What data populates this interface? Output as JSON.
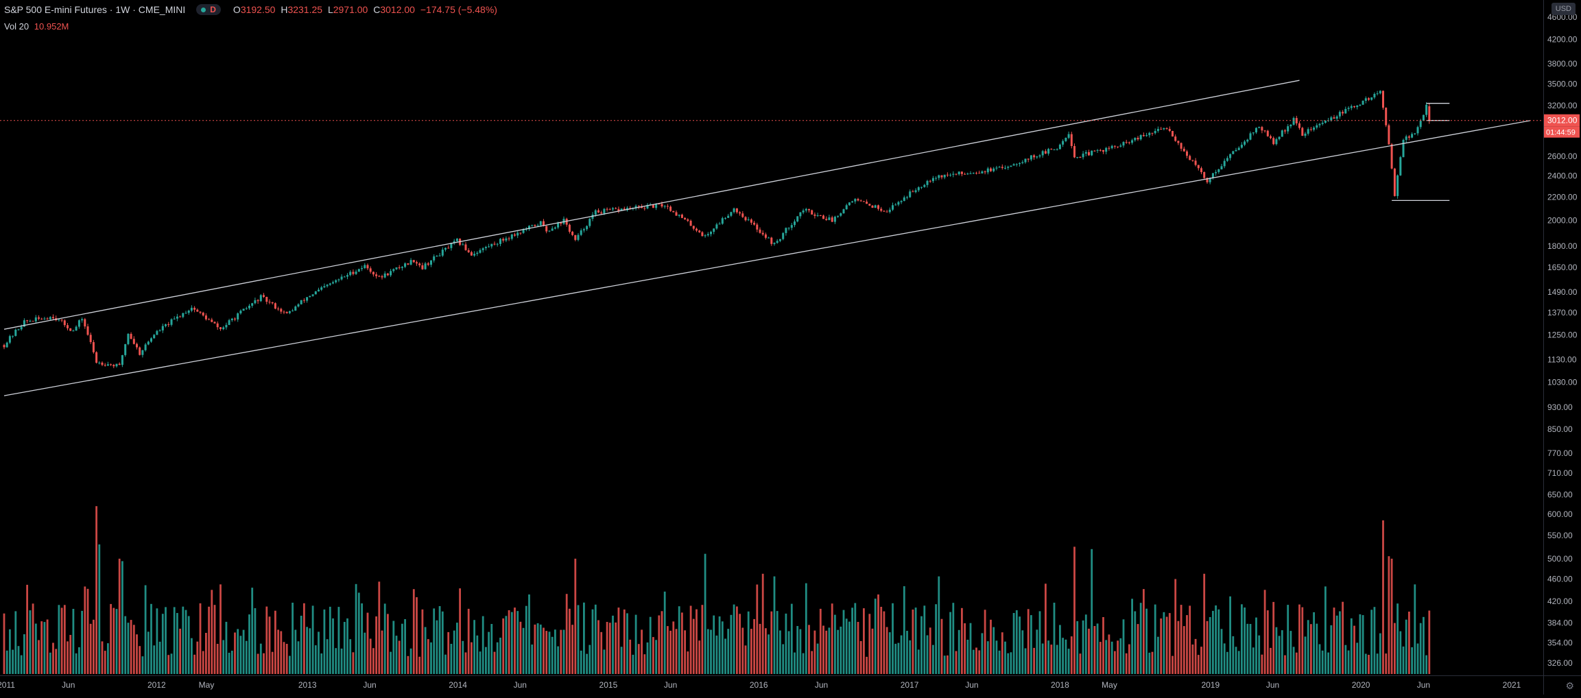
{
  "header": {
    "title": "S&P 500 E-mini Futures · 1W · CME_MINI",
    "interval_badge": "D",
    "ohlc": [
      {
        "key": "O",
        "value": "3192.50"
      },
      {
        "key": "H",
        "value": "3231.25"
      },
      {
        "key": "L",
        "value": "2971.00"
      },
      {
        "key": "C",
        "value": "3012.00"
      }
    ],
    "change": "−174.75 (−5.48%)"
  },
  "volume_legend": {
    "label": "Vol 20",
    "value": "10.952M"
  },
  "currency": "USD",
  "price_tag": {
    "price": "3012.00",
    "countdown": "01:44:59"
  },
  "colors": {
    "background": "#000000",
    "up": "#26a69a",
    "down": "#ef5350",
    "text": "#d1d4dc",
    "axis_text": "#b2b5be",
    "trendline": "#d1d4dc",
    "price_line": "#ef5350"
  },
  "chart_data": {
    "type": "candlestick",
    "title": "S&P 500 E-mini Futures",
    "interval": "1W",
    "y_scale": "log",
    "price_ticks": [
      326,
      354,
      384,
      420,
      460,
      500,
      550,
      600,
      650,
      710,
      770,
      850,
      930,
      1030,
      1130,
      1250,
      1370,
      1490,
      1650,
      1800,
      2000,
      2200,
      2400,
      2600,
      3012,
      3200,
      3500,
      3800,
      4200,
      4600
    ],
    "price_tick_labels": [
      "326.00",
      "354.00",
      "384.00",
      "420.00",
      "460.00",
      "500.00",
      "550.00",
      "600.00",
      "650.00",
      "710.00",
      "770.00",
      "850.00",
      "930.00",
      "1030.00",
      "1130.00",
      "1250.00",
      "1370.00",
      "1490.00",
      "1650.00",
      "1800.00",
      "2000.00",
      "2200.00",
      "2400.00",
      "2600.00",
      "3012.00",
      "3200.00",
      "3500.00",
      "3800.00",
      "4200.00",
      "4600.00"
    ],
    "time_labels": [
      {
        "date": "2011-01-01",
        "label": "2011"
      },
      {
        "date": "2011-06-01",
        "label": "Jun"
      },
      {
        "date": "2012-01-01",
        "label": "2012"
      },
      {
        "date": "2012-05-01",
        "label": "May"
      },
      {
        "date": "2013-01-01",
        "label": "2013"
      },
      {
        "date": "2013-06-01",
        "label": "Jun"
      },
      {
        "date": "2014-01-01",
        "label": "2014"
      },
      {
        "date": "2014-06-01",
        "label": "Jun"
      },
      {
        "date": "2015-01-01",
        "label": "2015"
      },
      {
        "date": "2015-06-01",
        "label": "Jun"
      },
      {
        "date": "2016-01-01",
        "label": "2016"
      },
      {
        "date": "2016-06-01",
        "label": "Jun"
      },
      {
        "date": "2017-01-01",
        "label": "2017"
      },
      {
        "date": "2017-06-01",
        "label": "Jun"
      },
      {
        "date": "2018-01-01",
        "label": "2018"
      },
      {
        "date": "2018-05-01",
        "label": "May"
      },
      {
        "date": "2019-01-01",
        "label": "2019"
      },
      {
        "date": "2019-06-01",
        "label": "Jun"
      },
      {
        "date": "2020-01-01",
        "label": "2020"
      },
      {
        "date": "2020-06-01",
        "label": "Jun"
      },
      {
        "date": "2021-01-01",
        "label": "2021"
      }
    ],
    "price_anchors": [
      [
        "2010-12-27",
        1200
      ],
      [
        "2011-02-14",
        1320
      ],
      [
        "2011-04-25",
        1350
      ],
      [
        "2011-06-13",
        1270
      ],
      [
        "2011-07-04",
        1340
      ],
      [
        "2011-08-08",
        1120
      ],
      [
        "2011-10-03",
        1100
      ],
      [
        "2011-10-24",
        1260
      ],
      [
        "2011-11-21",
        1160
      ],
      [
        "2011-12-26",
        1255
      ],
      [
        "2012-03-26",
        1400
      ],
      [
        "2012-06-04",
        1280
      ],
      [
        "2012-09-10",
        1460
      ],
      [
        "2012-11-12",
        1360
      ],
      [
        "2012-12-31",
        1460
      ],
      [
        "2013-05-20",
        1660
      ],
      [
        "2013-06-24",
        1580
      ],
      [
        "2013-09-16",
        1700
      ],
      [
        "2013-10-07",
        1650
      ],
      [
        "2013-12-30",
        1840
      ],
      [
        "2014-02-03",
        1740
      ],
      [
        "2014-07-21",
        1980
      ],
      [
        "2014-08-04",
        1915
      ],
      [
        "2014-09-15",
        2000
      ],
      [
        "2014-10-13",
        1840
      ],
      [
        "2014-12-01",
        2070
      ],
      [
        "2015-05-18",
        2130
      ],
      [
        "2015-08-24",
        1870
      ],
      [
        "2015-11-02",
        2100
      ],
      [
        "2016-02-08",
        1810
      ],
      [
        "2016-04-18",
        2090
      ],
      [
        "2016-06-27",
        2000
      ],
      [
        "2016-08-15",
        2180
      ],
      [
        "2016-11-07",
        2080
      ],
      [
        "2017-02-27",
        2390
      ],
      [
        "2017-08-07",
        2470
      ],
      [
        "2017-12-25",
        2690
      ],
      [
        "2018-01-22",
        2870
      ],
      [
        "2018-02-05",
        2590
      ],
      [
        "2018-05-28",
        2720
      ],
      [
        "2018-09-17",
        2930
      ],
      [
        "2018-10-29",
        2650
      ],
      [
        "2018-12-24",
        2350
      ],
      [
        "2019-04-29",
        2940
      ],
      [
        "2019-06-03",
        2750
      ],
      [
        "2019-07-22",
        3020
      ],
      [
        "2019-08-12",
        2850
      ],
      [
        "2019-12-30",
        3230
      ],
      [
        "2020-02-17",
        3390
      ],
      [
        "2020-03-02",
        2950
      ],
      [
        "2020-03-23",
        2230
      ],
      [
        "2020-04-13",
        2790
      ],
      [
        "2020-05-11",
        2850
      ],
      [
        "2020-06-08",
        3192.5
      ],
      [
        "2020-06-15",
        3012
      ]
    ],
    "last_candle": {
      "open": 3192.5,
      "high": 3231.25,
      "low": 2971.0,
      "close": 3012.0
    },
    "current_price": 3012.0,
    "price_range": [
      310,
      5000
    ],
    "volume": {
      "indicator": "Vol 20",
      "last": "10.952M",
      "baseline_k": 380,
      "spikes": [
        [
          "2011-08-08",
          620
        ],
        [
          "2011-08-15",
          530
        ],
        [
          "2011-10-03",
          500
        ],
        [
          "2011-10-10",
          495
        ],
        [
          "2012-05-14",
          440
        ],
        [
          "2012-06-04",
          450
        ],
        [
          "2013-06-24",
          455
        ],
        [
          "2014-10-13",
          500
        ],
        [
          "2015-08-24",
          510
        ],
        [
          "2016-01-11",
          470
        ],
        [
          "2016-02-08",
          465
        ],
        [
          "2017-03-13",
          465
        ],
        [
          "2018-02-05",
          525
        ],
        [
          "2018-03-19",
          520
        ],
        [
          "2018-10-08",
          460
        ],
        [
          "2018-12-17",
          470
        ],
        [
          "2019-05-13",
          440
        ],
        [
          "2020-02-24",
          585
        ],
        [
          "2020-03-09",
          505
        ],
        [
          "2020-03-16",
          500
        ]
      ]
    },
    "trendlines": [
      {
        "name": "upper-channel-line",
        "from": [
          "2010-12-27",
          1280
        ],
        "to": [
          "2019-08-05",
          3550
        ]
      },
      {
        "name": "lower-channel-line",
        "from": [
          "2010-12-27",
          975
        ],
        "to": [
          "2021-02-15",
          3010
        ]
      },
      {
        "name": "recent-low-level",
        "from": [
          "2020-03-16",
          2170
        ],
        "to": [
          "2020-08-03",
          2170
        ]
      },
      {
        "name": "recent-high-level",
        "from": [
          "2020-06-08",
          3231
        ],
        "to": [
          "2020-08-03",
          3231
        ]
      },
      {
        "name": "current-close-level",
        "from": [
          "2020-06-08",
          3012
        ],
        "to": [
          "2020-08-03",
          3012
        ]
      }
    ]
  }
}
